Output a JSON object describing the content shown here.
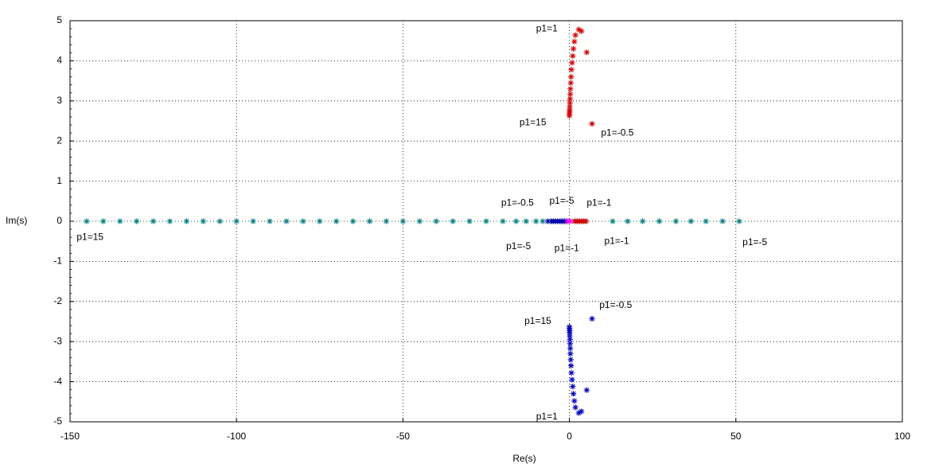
{
  "chart_data": {
    "type": "scatter",
    "title": "",
    "xlabel": "Re(s)",
    "ylabel": "Im(s)",
    "xlim": [
      -150,
      100
    ],
    "ylim": [
      -5,
      5
    ],
    "xticks": [
      -150,
      -100,
      -50,
      0,
      50,
      100
    ],
    "yticks": [
      -5,
      -4,
      -3,
      -2,
      -1,
      0,
      1,
      2,
      3,
      4,
      5
    ],
    "grid": true,
    "marker": "asterisk",
    "colors": {
      "upper": "#e00000",
      "lower": "#0000cc",
      "real_left": "#008080",
      "real_right": "#008080",
      "center_pos": "#cc0000",
      "center_neg": "#0000aa",
      "origin": "#ff00ff"
    },
    "series": [
      {
        "key": "upper",
        "points": [
          [
            2.8,
            4.78
          ],
          [
            3.6,
            4.74
          ],
          [
            1.8,
            4.64
          ],
          [
            5.2,
            4.21
          ],
          [
            1.5,
            4.48
          ],
          [
            1.2,
            4.3
          ],
          [
            1.0,
            4.12
          ],
          [
            0.8,
            3.95
          ],
          [
            0.6,
            3.78
          ],
          [
            0.5,
            3.6
          ],
          [
            0.4,
            3.45
          ],
          [
            0.3,
            3.3
          ],
          [
            0.25,
            3.17
          ],
          [
            0.2,
            3.05
          ],
          [
            0.15,
            2.95
          ],
          [
            0.1,
            2.86
          ],
          [
            0.08,
            2.78
          ],
          [
            0.05,
            2.72
          ],
          [
            0.03,
            2.67
          ],
          [
            0.0,
            2.63
          ],
          [
            6.8,
            2.43
          ]
        ]
      },
      {
        "key": "lower",
        "points": [
          [
            2.8,
            -4.78
          ],
          [
            3.6,
            -4.74
          ],
          [
            1.8,
            -4.64
          ],
          [
            5.2,
            -4.21
          ],
          [
            1.5,
            -4.48
          ],
          [
            1.2,
            -4.3
          ],
          [
            1.0,
            -4.12
          ],
          [
            0.8,
            -3.95
          ],
          [
            0.6,
            -3.78
          ],
          [
            0.5,
            -3.6
          ],
          [
            0.4,
            -3.45
          ],
          [
            0.3,
            -3.3
          ],
          [
            0.25,
            -3.17
          ],
          [
            0.2,
            -3.05
          ],
          [
            0.15,
            -2.95
          ],
          [
            0.1,
            -2.86
          ],
          [
            0.08,
            -2.78
          ],
          [
            0.05,
            -2.72
          ],
          [
            0.03,
            -2.67
          ],
          [
            0.0,
            -2.63
          ],
          [
            6.8,
            -2.43
          ]
        ]
      },
      {
        "key": "real_left",
        "points": [
          [
            -145,
            0
          ],
          [
            -140,
            0
          ],
          [
            -135,
            0
          ],
          [
            -130,
            0
          ],
          [
            -125,
            0
          ],
          [
            -120,
            0
          ],
          [
            -115,
            0
          ],
          [
            -110,
            0
          ],
          [
            -105,
            0
          ],
          [
            -100,
            0
          ],
          [
            -95,
            0
          ],
          [
            -90,
            0
          ],
          [
            -85,
            0
          ],
          [
            -80,
            0
          ],
          [
            -75,
            0
          ],
          [
            -70,
            0
          ],
          [
            -65,
            0
          ],
          [
            -60,
            0
          ],
          [
            -55,
            0
          ],
          [
            -50,
            0
          ],
          [
            -45,
            0
          ],
          [
            -40,
            0
          ],
          [
            -35,
            0
          ],
          [
            -30,
            0
          ],
          [
            -25,
            0
          ],
          [
            -20,
            0
          ],
          [
            -16,
            0
          ],
          [
            -13,
            0
          ],
          [
            -10,
            0
          ],
          [
            -8,
            0
          ]
        ]
      },
      {
        "key": "real_right",
        "points": [
          [
            13,
            0
          ],
          [
            17.5,
            0
          ],
          [
            22,
            0
          ],
          [
            27,
            0
          ],
          [
            32,
            0
          ],
          [
            36.5,
            0
          ],
          [
            41,
            0
          ],
          [
            46,
            0
          ],
          [
            51,
            0
          ]
        ]
      },
      {
        "key": "center_neg",
        "points": [
          [
            -6.5,
            0
          ],
          [
            -5.5,
            0
          ],
          [
            -4.8,
            0
          ],
          [
            -4.2,
            0
          ],
          [
            -3.6,
            0
          ],
          [
            -3.0,
            0
          ],
          [
            -2.5,
            0
          ],
          [
            -2.0,
            0
          ],
          [
            -1.5,
            0
          ],
          [
            -1.0,
            0
          ]
        ]
      },
      {
        "key": "center_pos",
        "points": [
          [
            1.5,
            0
          ],
          [
            2.0,
            0
          ],
          [
            2.5,
            0
          ],
          [
            3.0,
            0
          ],
          [
            3.5,
            0
          ],
          [
            4.2,
            0
          ],
          [
            5.0,
            0
          ]
        ]
      },
      {
        "key": "origin",
        "points": [
          [
            -0.5,
            0
          ],
          [
            0.3,
            0
          ]
        ]
      }
    ],
    "annotations": [
      {
        "text": "p1=1",
        "x": -10,
        "y": 4.8
      },
      {
        "text": "p1=15",
        "x": -15,
        "y": 2.45
      },
      {
        "text": "p1=-0.5",
        "x": 9.5,
        "y": 2.2
      },
      {
        "text": "p1=-0.5",
        "x": -20.5,
        "y": 0.45
      },
      {
        "text": "p1=-5",
        "x": -6,
        "y": 0.5
      },
      {
        "text": "p1=-1",
        "x": 5.2,
        "y": 0.45
      },
      {
        "text": "p1=15",
        "x": -148,
        "y": -0.4
      },
      {
        "text": "p1=-5",
        "x": -19,
        "y": -0.63
      },
      {
        "text": "p1=-1",
        "x": -4.5,
        "y": -0.68
      },
      {
        "text": "p1=-1",
        "x": 10.5,
        "y": -0.5
      },
      {
        "text": "p1=-5",
        "x": 52,
        "y": -0.53
      },
      {
        "text": "p1=-0.5",
        "x": 9,
        "y": -2.1
      },
      {
        "text": "p1=15",
        "x": -13.5,
        "y": -2.5
      },
      {
        "text": "p1=1",
        "x": -10,
        "y": -4.88
      }
    ]
  }
}
